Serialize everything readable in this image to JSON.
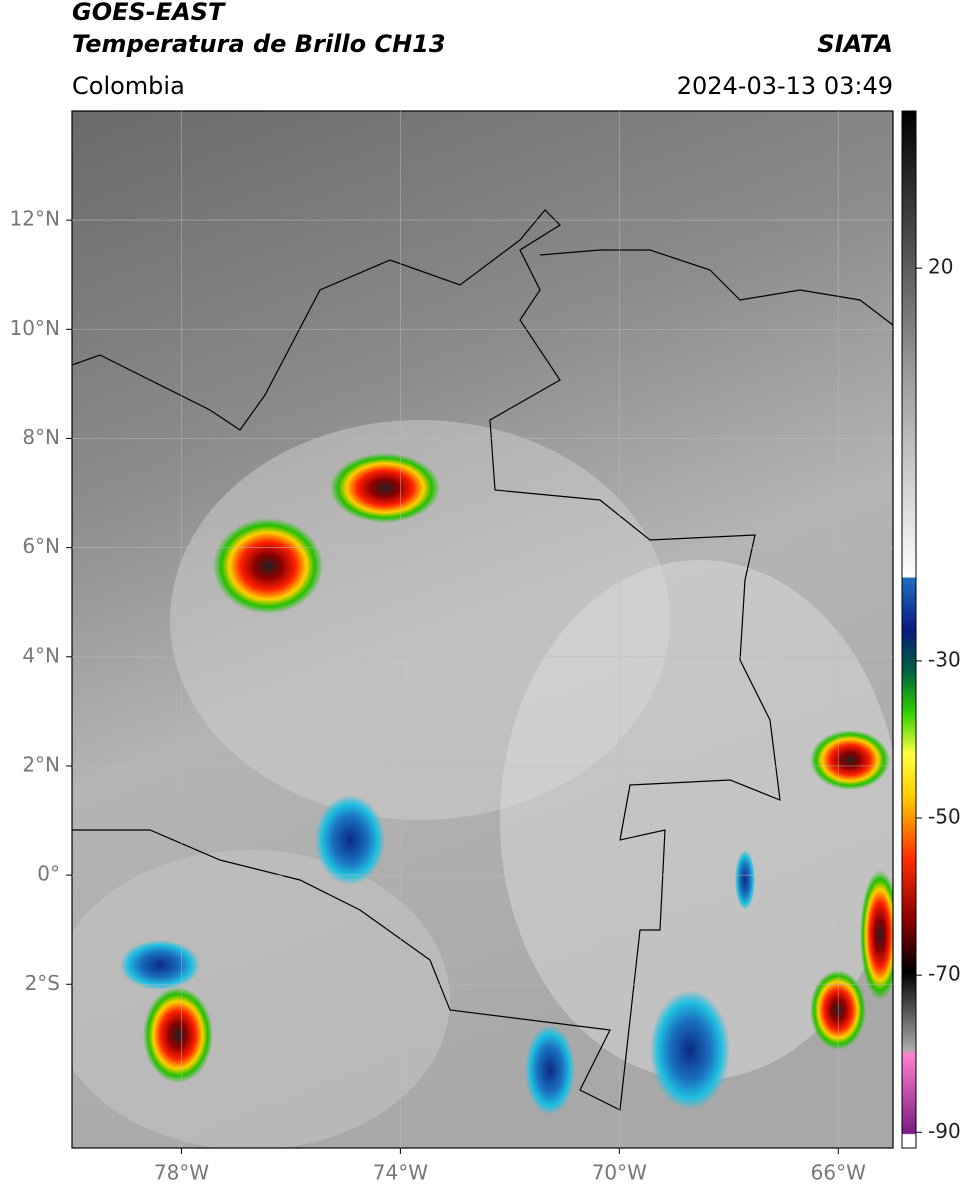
{
  "header": {
    "title": "GOES-EAST",
    "subtitle": "Temperatura de Brillo CH13",
    "source": "SIATA",
    "region": "Colombia",
    "datetime": "2024-03-13 03:49"
  },
  "map": {
    "lon_range": [
      -80,
      -65
    ],
    "lat_range": [
      -5,
      14
    ],
    "lon_ticks": [
      {
        "value": -78,
        "label": "78°W"
      },
      {
        "value": -74,
        "label": "74°W"
      },
      {
        "value": -70,
        "label": "70°W"
      },
      {
        "value": -66,
        "label": "66°W"
      }
    ],
    "lat_ticks": [
      {
        "value": 12,
        "label": "12°N"
      },
      {
        "value": 10,
        "label": "10°N"
      },
      {
        "value": 8,
        "label": "8°N"
      },
      {
        "value": 6,
        "label": "6°N"
      },
      {
        "value": 4,
        "label": "4°N"
      },
      {
        "value": 2,
        "label": "2°N"
      },
      {
        "value": 0,
        "label": "0°"
      },
      {
        "value": -2,
        "label": "2°S"
      }
    ]
  },
  "colorbar": {
    "range": [
      -92,
      40
    ],
    "ticks": [
      20,
      -30,
      -50,
      -70,
      -90
    ]
  }
}
